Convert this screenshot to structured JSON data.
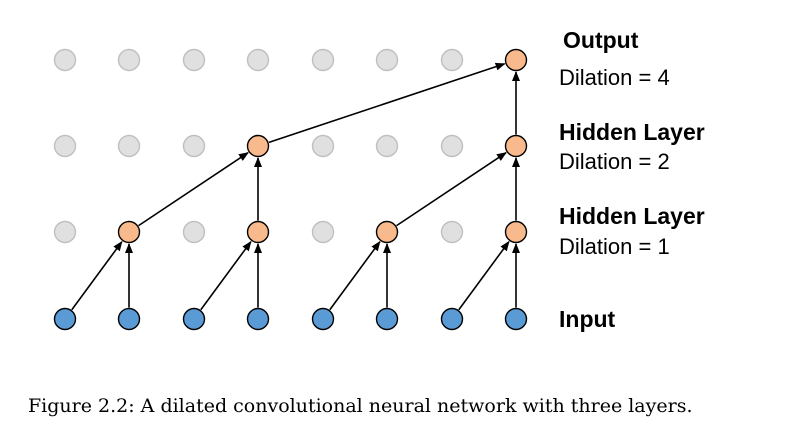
{
  "diagram": {
    "layers": [
      {
        "name": "Output",
        "dilation": "Dilation = 4"
      },
      {
        "name": "Hidden Layer",
        "dilation": "Dilation = 2"
      },
      {
        "name": "Hidden Layer",
        "dilation": "Dilation = 1"
      },
      {
        "name": "Input",
        "dilation": ""
      }
    ],
    "nodes_per_layer": 8,
    "active_nodes": [
      [
        7
      ],
      [
        3,
        7
      ],
      [
        1,
        3,
        5,
        7
      ],
      [
        0,
        1,
        2,
        3,
        4,
        5,
        6,
        7
      ]
    ],
    "colors": {
      "input": "#5b9bd5",
      "active": "#f8b98c",
      "inactive": "#e0e0e0",
      "inactive_stroke": "#bfbfbf",
      "active_stroke": "#000000",
      "edge": "#000000"
    }
  },
  "caption": "Figure 2.2: A dilated convolutional neural network with three layers."
}
